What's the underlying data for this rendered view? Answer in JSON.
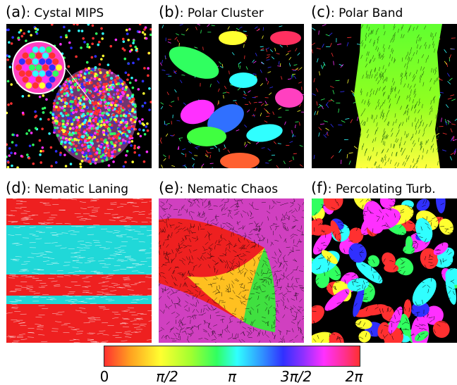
{
  "panels": [
    {
      "tag": "(a)",
      "title": ": Cystal MIPS"
    },
    {
      "tag": "(b)",
      "title": ": Polar Cluster"
    },
    {
      "tag": "(c)",
      "title": ": Polar Band"
    },
    {
      "tag": "(d)",
      "title": ": Nematic Laning"
    },
    {
      "tag": "(e)",
      "title": ": Nematic Chaos"
    },
    {
      "tag": "(f)",
      "title": ": Percolating Turb."
    }
  ],
  "colorbar": {
    "labels": [
      "0",
      "π/2",
      "π",
      "3π/2",
      "2π"
    ],
    "colors": [
      "#ff3030",
      "#ffff30",
      "#30ff60",
      "#30ffff",
      "#3030ff",
      "#ff30ff",
      "#ff3030"
    ]
  }
}
